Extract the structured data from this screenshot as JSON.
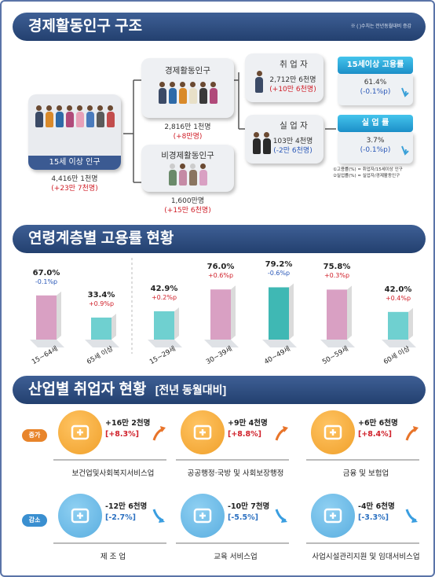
{
  "section1": {
    "title": "경제활동인구 구조",
    "note": "※ ( )수치는 전년동월대비 증감",
    "pop15": {
      "label": "15세 이상 인구",
      "value": "4,416만 1천명",
      "change": "(+23만 7천명)"
    },
    "econ_active": {
      "label": "경제활동인구",
      "value": "2,816만 1천명",
      "change": "(+8만명)"
    },
    "non_active": {
      "label": "비경제활동인구",
      "value": "1,600만명",
      "change": "(+15만 6천명)"
    },
    "employed": {
      "label": "취 업 자",
      "value": "2,712만 6천명",
      "change": "(+10만 6천명)"
    },
    "unemployed": {
      "label": "실 업 자",
      "value": "103만 4천명",
      "change": "(-2만 6천명)"
    },
    "employment_rate": {
      "label": "15세이상 고용률",
      "value": "61.4%",
      "change": "(-0.1%p)"
    },
    "unemployment_rate": {
      "label": "실 업 률",
      "value": "3.7%",
      "change": "(-0.1%p)"
    },
    "notes": [
      "①고용률(%) = 취업자/15세이상 인구",
      "②실업률(%) = 실업자/경제활동인구"
    ]
  },
  "section2": {
    "title": "연령계층별 고용률 현황"
  },
  "chart_data": {
    "type": "bar",
    "categories": [
      "15~64세",
      "65세 이상",
      "15~29세",
      "30~39세",
      "40~49세",
      "50~59세",
      "60세 이상"
    ],
    "values": [
      67.0,
      33.4,
      42.9,
      76.0,
      79.2,
      75.8,
      42.0
    ],
    "value_labels": [
      "67.0%",
      "33.4%",
      "42.9%",
      "76.0%",
      "79.2%",
      "75.8%",
      "42.0%"
    ],
    "changes": [
      "-0.1%p",
      "+0.9%p",
      "+0.2%p",
      "+0.6%p",
      "-0.6%p",
      "+0.3%p",
      "+0.4%p"
    ],
    "ylim": [
      0,
      100
    ],
    "colors": {
      "pink": "#d9a0c3",
      "teal": "#6fd0d0",
      "dark_teal": "#3fb8b4"
    }
  },
  "section3": {
    "title": "산업별 취업자 현황",
    "subtitle": "[전년 동월대비]",
    "increase_tag": "증가",
    "decrease_tag": "감소",
    "increase": [
      {
        "name": "보건업및사회복지서비스업",
        "value": "+16만 2천명",
        "pct": "[+8.3%]",
        "icon": "medical-icon"
      },
      {
        "name": "공공행정·국방 및 사회보장행정",
        "value": "+9만 4천명",
        "pct": "[+8.8%]",
        "icon": "chart-board-icon"
      },
      {
        "name": "금융 및 보험업",
        "value": "+6만 6천명",
        "pct": "[+8.4%]",
        "icon": "finance-icon"
      }
    ],
    "decrease": [
      {
        "name": "제 조 업",
        "value": "-12만 6천명",
        "pct": "[-2.7%]",
        "icon": "manufacturing-icon"
      },
      {
        "name": "교육 서비스업",
        "value": "-10만 7천명",
        "pct": "[-5.5%]",
        "icon": "education-icon"
      },
      {
        "name": "사업시설관리지원 및 임대서비스업",
        "value": "-4만 6천명",
        "pct": "[-3.3%]",
        "icon": "facility-icon"
      }
    ]
  }
}
